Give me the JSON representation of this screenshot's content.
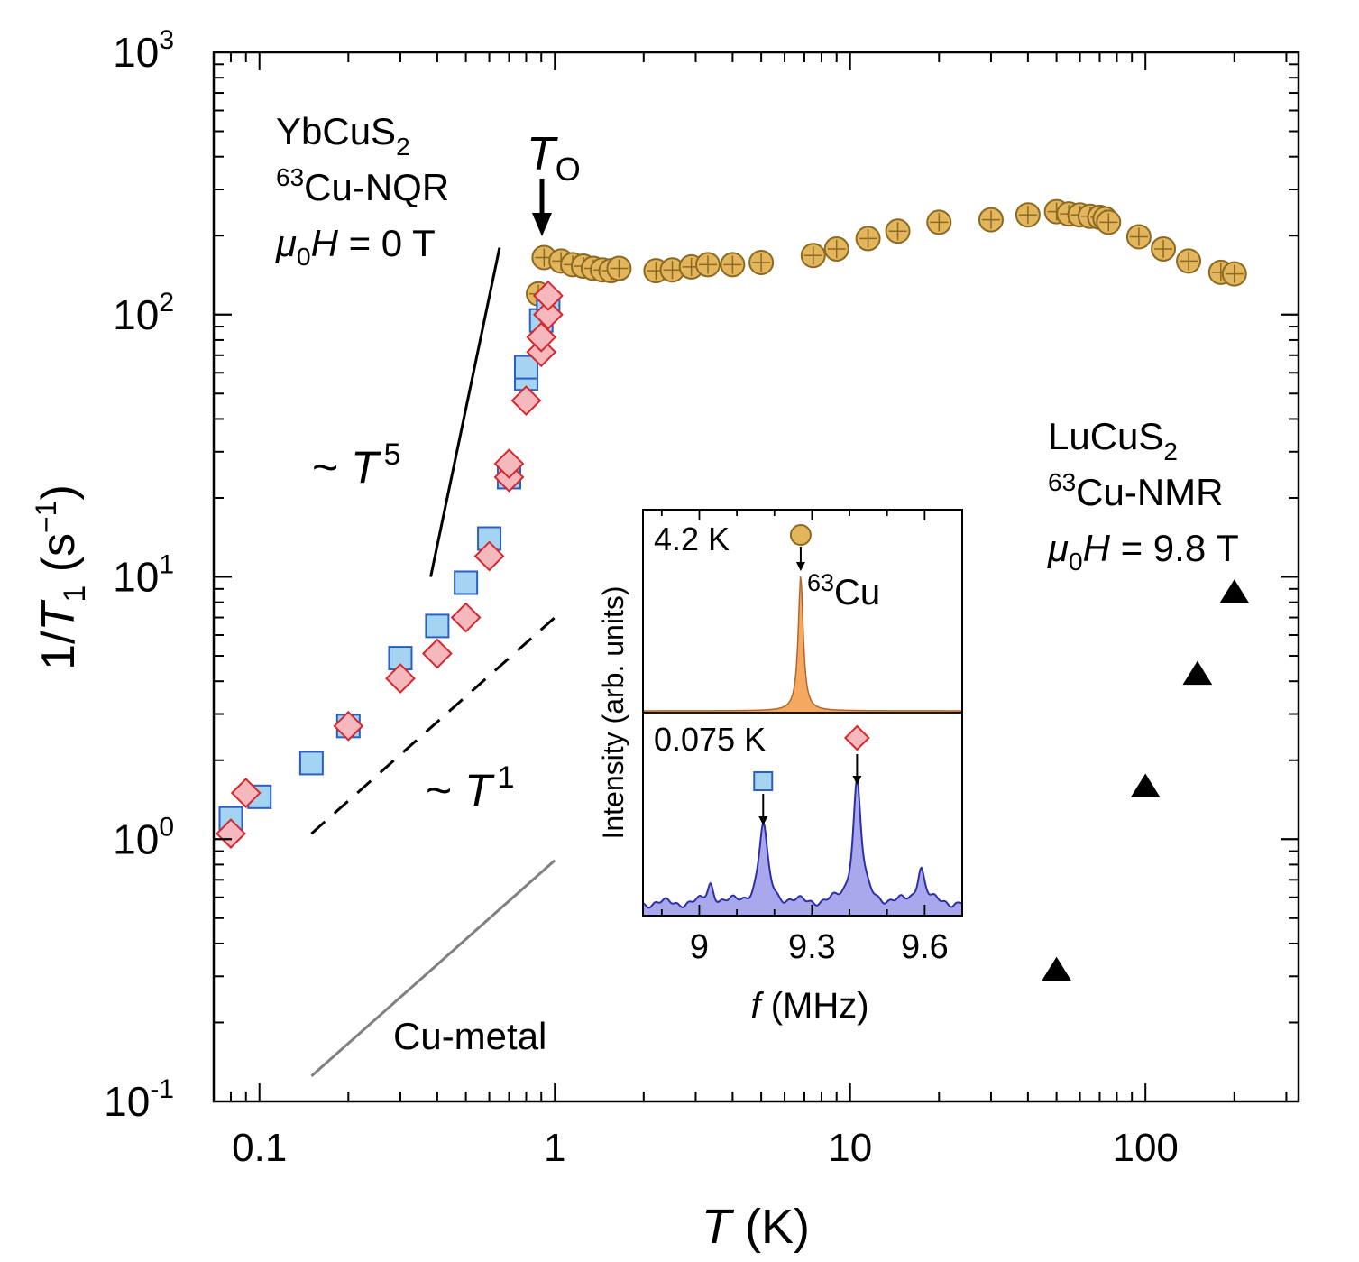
{
  "chart_data": {
    "type": "scatter",
    "xlabel": {
      "var": "T",
      "unit": " (K)"
    },
    "ylabel": {
      "pre": "1/",
      "var": "T",
      "sub": "1",
      "unit_pre": " (s",
      "unit_sup": "−1",
      "unit_post": ")"
    },
    "xscale": "log",
    "yscale": "log",
    "xlim": [
      0.07,
      330
    ],
    "ylim": [
      0.1,
      1000
    ],
    "xticks": [
      {
        "v": 0.1,
        "label": "0.1"
      },
      {
        "v": 1,
        "label": "1"
      },
      {
        "v": 10,
        "label": "10"
      },
      {
        "v": 100,
        "label": "100"
      }
    ],
    "yticks": [
      {
        "v": 0.1,
        "base": "10",
        "exp": "-1"
      },
      {
        "v": 1,
        "base": "10",
        "exp": "0"
      },
      {
        "v": 10,
        "base": "10",
        "exp": "1"
      },
      {
        "v": 100,
        "base": "10",
        "exp": "2"
      },
      {
        "v": 1000,
        "base": "10",
        "exp": "3"
      }
    ],
    "annotations": {
      "yb_line1_base": "YbCuS",
      "yb_line1_sub": "2",
      "yb_line2_sup": "63",
      "yb_line2_text": "Cu-NQR",
      "yb_line3_mu": "μ",
      "yb_line3_sub": "0",
      "yb_line3_var": "H",
      "yb_line3_text": " = 0 T",
      "lu_line1_base": "LuCuS",
      "lu_line1_sub": "2",
      "lu_line2_sup": "63",
      "lu_line2_text": "Cu-NMR",
      "lu_line3_mu": "μ",
      "lu_line3_sub": "0",
      "lu_line3_var": "H",
      "lu_line3_text": " = 9.8 T",
      "to_var": "T",
      "to_sub": "O",
      "t5_pre": "~ ",
      "t5_var": "T",
      "t5_sup": "5",
      "t1_pre": "~ ",
      "t1_var": "T",
      "t1_sup": "1",
      "cu_metal": "Cu-metal"
    },
    "guide_lines": [
      {
        "name": "T5-guide",
        "x": [
          0.38,
          0.65
        ],
        "y": [
          10,
          180
        ],
        "style": "solid-black"
      },
      {
        "name": "T1-guide",
        "x": [
          0.15,
          1.0
        ],
        "y": [
          1.05,
          7.0
        ],
        "style": "dashed-black"
      },
      {
        "name": "cu-metal-guide",
        "x": [
          0.15,
          1.0
        ],
        "y": [
          0.125,
          0.83
        ],
        "style": "solid-gray"
      }
    ],
    "series": [
      {
        "marker": "circle-plus",
        "color": "#e3b55c",
        "edge": "#8a6a22",
        "x": [
          0.88,
          0.92,
          1.05,
          1.15,
          1.25,
          1.35,
          1.45,
          1.55,
          1.65,
          2.2,
          2.5,
          2.9,
          3.3,
          4.0,
          5.0,
          7.5,
          9.0,
          11.5,
          14.5,
          20,
          30,
          40,
          50,
          55,
          60,
          65,
          70,
          73,
          75,
          95,
          115,
          140,
          180,
          200
        ],
        "y": [
          120,
          165,
          160,
          155,
          153,
          150,
          148,
          147,
          150,
          147,
          148,
          152,
          155,
          155,
          158,
          168,
          178,
          195,
          208,
          225,
          230,
          240,
          247,
          242,
          240,
          237,
          235,
          232,
          225,
          198,
          178,
          160,
          145,
          143
        ]
      },
      {
        "marker": "square",
        "color": "#a5d4f2",
        "edge": "#2a5fc4",
        "x": [
          0.08,
          0.1,
          0.15,
          0.2,
          0.3,
          0.4,
          0.5,
          0.6,
          0.7,
          0.8,
          0.8,
          0.9,
          0.95
        ],
        "y": [
          1.2,
          1.45,
          1.95,
          2.7,
          4.9,
          6.5,
          9.5,
          14,
          24,
          57,
          63,
          95,
          110
        ]
      },
      {
        "marker": "diamond",
        "color": "#f5b8bd",
        "edge": "#d7262c",
        "x": [
          0.08,
          0.09,
          0.2,
          0.3,
          0.4,
          0.5,
          0.6,
          0.7,
          0.7,
          0.8,
          0.9,
          0.9,
          0.95,
          0.95
        ],
        "y": [
          1.05,
          1.5,
          2.7,
          4.1,
          5.1,
          7.0,
          12,
          24,
          27,
          47,
          72,
          82,
          100,
          118
        ]
      },
      {
        "marker": "triangle",
        "color": "#000000",
        "edge": "#000000",
        "x": [
          50,
          100,
          150,
          200
        ],
        "y": [
          0.32,
          1.6,
          4.3,
          8.8
        ]
      }
    ],
    "inset": {
      "xlabel": {
        "var": "f",
        "unit": " (MHz)"
      },
      "ylabel": "Intensity (arb. units)",
      "xlim": [
        8.85,
        9.7
      ],
      "xticks": [
        {
          "v": 9.0,
          "label": "9"
        },
        {
          "v": 9.3,
          "label": "9.3"
        },
        {
          "v": 9.6,
          "label": "9.6"
        }
      ],
      "top_panel": {
        "temperature_label": "4.2 K",
        "label_color": "#a0521a",
        "fill": "#f4a860",
        "stroke": "#b5652a",
        "peak_label_sup": "63",
        "peak_label_text": "Cu",
        "peak_x": 9.27
      },
      "bottom_panel": {
        "temperature_label": "0.075 K",
        "label_color": "#4a7fc7",
        "fill": "#aaa8ec",
        "stroke": "#2c2fa7",
        "peak_square_x": 9.17,
        "peak_diamond_x": 9.42
      }
    }
  }
}
